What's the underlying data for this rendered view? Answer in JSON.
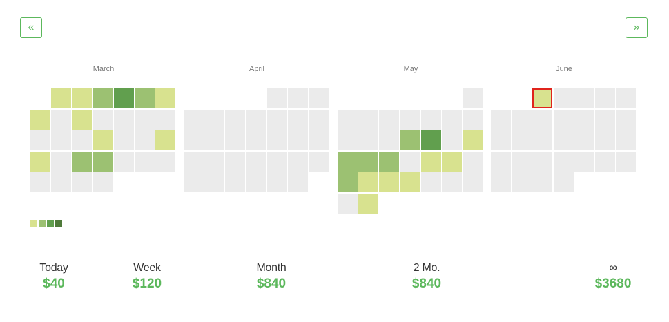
{
  "nav": {
    "prev_label": "«",
    "next_label": "»"
  },
  "calendar": {
    "colors": {
      "empty": "#ebebeb",
      "l1": "#d8e28f",
      "l2": "#9cc172",
      "l3": "#619f4e",
      "l4": "#4f7a3a"
    },
    "months": [
      {
        "name": "March",
        "rows": [
          [
            null,
            1,
            1,
            2,
            3,
            2,
            1
          ],
          [
            1,
            0,
            1,
            0,
            0,
            0,
            0
          ],
          [
            0,
            0,
            0,
            1,
            0,
            0,
            1
          ],
          [
            1,
            0,
            2,
            2,
            0,
            0,
            0
          ],
          [
            0,
            0,
            0,
            0,
            null,
            null,
            null
          ]
        ]
      },
      {
        "name": "April",
        "rows": [
          [
            null,
            null,
            null,
            null,
            0,
            0,
            0
          ],
          [
            0,
            0,
            0,
            0,
            0,
            0,
            0
          ],
          [
            0,
            0,
            0,
            0,
            0,
            0,
            0
          ],
          [
            0,
            0,
            0,
            0,
            0,
            0,
            0
          ],
          [
            0,
            0,
            0,
            0,
            0,
            0,
            null
          ]
        ]
      },
      {
        "name": "May",
        "rows": [
          [
            null,
            null,
            null,
            null,
            null,
            null,
            0
          ],
          [
            0,
            0,
            0,
            0,
            0,
            0,
            0
          ],
          [
            0,
            0,
            0,
            2,
            3,
            0,
            1
          ],
          [
            2,
            2,
            2,
            0,
            1,
            1,
            0
          ],
          [
            2,
            1,
            1,
            1,
            0,
            0,
            0
          ],
          [
            0,
            1,
            null,
            null,
            null,
            null,
            null
          ]
        ]
      },
      {
        "name": "June",
        "rows": [
          [
            null,
            null,
            1,
            0,
            0,
            0,
            0
          ],
          [
            0,
            0,
            0,
            0,
            0,
            0,
            0
          ],
          [
            0,
            0,
            0,
            0,
            0,
            0,
            0
          ],
          [
            0,
            0,
            0,
            0,
            0,
            0,
            0
          ],
          [
            0,
            0,
            0,
            0,
            null,
            null,
            null
          ]
        ],
        "selected": [
          0,
          2
        ]
      }
    ]
  },
  "legend": [
    "#d8e28f",
    "#9cc172",
    "#619f4e",
    "#4f7a3a"
  ],
  "stats": [
    {
      "label": "Today",
      "value": "$40"
    },
    {
      "label": "Week",
      "value": "$120"
    },
    {
      "label": "Month",
      "value": "$840"
    },
    {
      "label": "2 Mo.",
      "value": "$840"
    },
    {
      "label": "∞",
      "value": "$3680"
    }
  ]
}
